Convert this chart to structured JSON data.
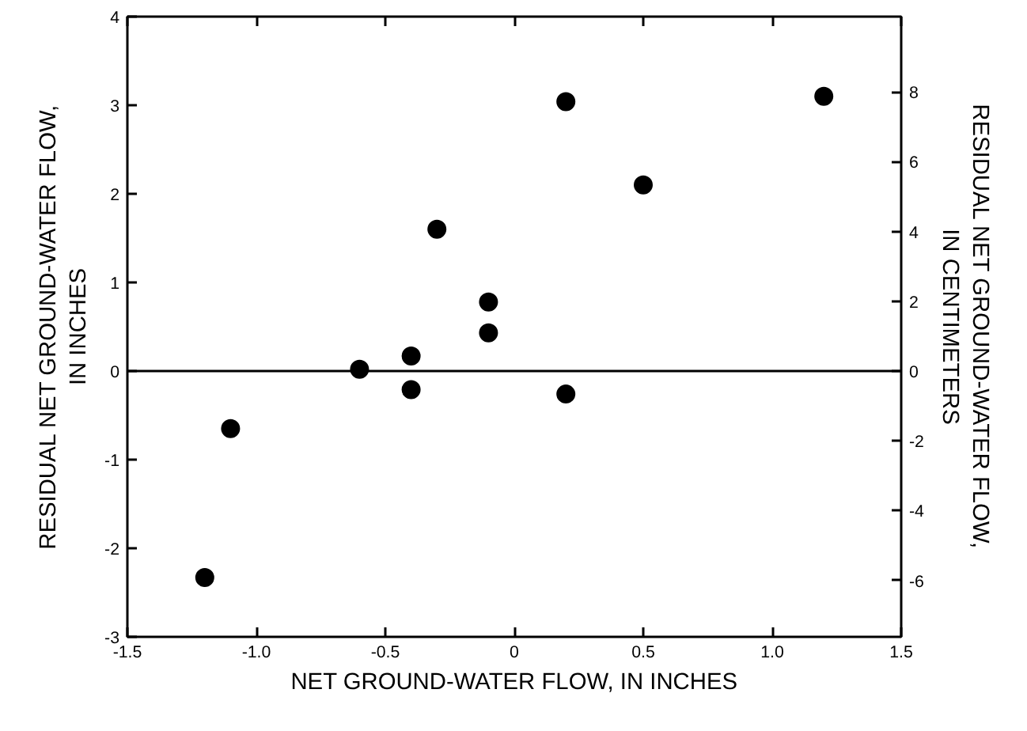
{
  "chart_data": {
    "type": "scatter",
    "xlabel": "NET GROUND-WATER FLOW, IN INCHES",
    "ylabel": "RESIDUAL NET GROUND-WATER FLOW,\nIN INCHES",
    "y2label": "RESIDUAL NET GROUND-WATER FLOW,\nIN CENTIMETERS",
    "x": [
      -1.2,
      -1.1,
      -0.6,
      -0.4,
      -0.4,
      -0.3,
      -0.1,
      -0.1,
      0.2,
      0.2,
      0.5,
      1.2
    ],
    "series": [
      {
        "color": "#000000",
        "values": [
          -2.33,
          -0.65,
          0.02,
          0.17,
          -0.21,
          1.6,
          0.78,
          0.43,
          3.04,
          -0.26,
          2.1,
          3.1
        ]
      }
    ],
    "xlim": [
      -1.5,
      1.5
    ],
    "xticks": [
      {
        "value": -1.5,
        "label": "-1.5"
      },
      {
        "value": -1.0,
        "label": "-1.0"
      },
      {
        "value": -0.5,
        "label": "-0.5"
      },
      0,
      {
        "value": 0.5,
        "label": "0.5"
      },
      {
        "value": 1.0,
        "label": "1.0"
      },
      {
        "value": 1.5,
        "label": "1.5"
      }
    ],
    "ylim": [
      -3,
      4
    ],
    "yticks": [
      {
        "value": -3,
        "label": "-3"
      },
      {
        "value": -2,
        "label": "-2"
      },
      {
        "value": -1,
        "label": "-1"
      },
      0,
      1,
      2,
      3,
      4
    ],
    "y2lim": [
      -7.62,
      10.16
    ],
    "y2ticks": [
      {
        "value": -6,
        "label": "-6"
      },
      {
        "value": -4,
        "label": "-4"
      },
      {
        "value": -2,
        "label": "-2"
      },
      0,
      2,
      4,
      6,
      8
    ],
    "ref_lines": [
      {
        "axis": "y",
        "value": 0,
        "color": "#000000"
      }
    ],
    "marker": "circle",
    "grid": false
  }
}
